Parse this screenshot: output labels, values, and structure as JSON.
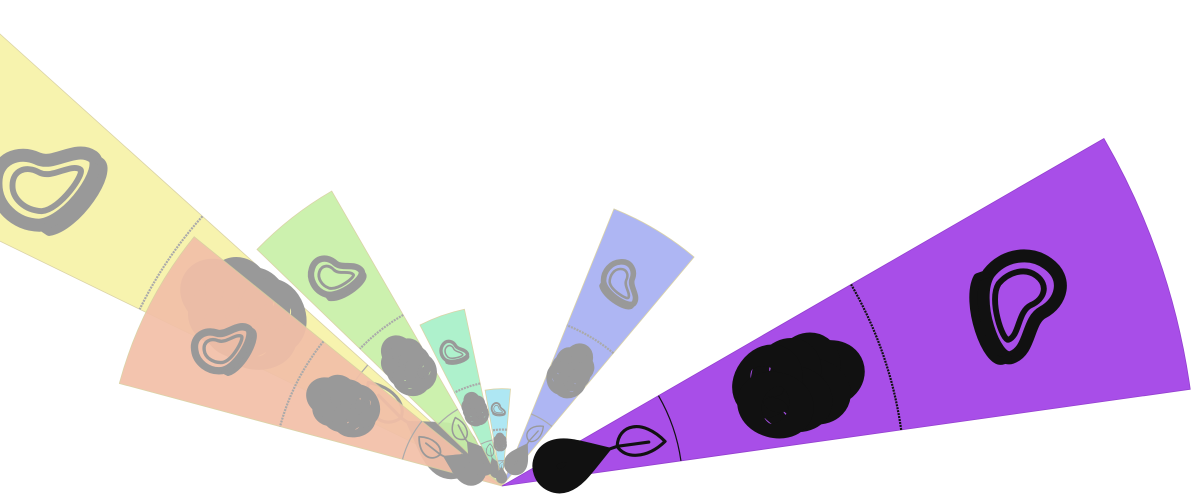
{
  "chart_data": {
    "type": "radial-fan",
    "layers": [
      "droplet-icon",
      "leaf-icon",
      "wheat-icon",
      "meat-icon"
    ],
    "sectors": [
      {
        "id": "red",
        "color": "#f2c0a8",
        "reach": 0.57,
        "highlighted": false
      },
      {
        "id": "yellow",
        "color": "#f7f3a8",
        "reach": 1.0,
        "highlighted": false
      },
      {
        "id": "green",
        "color": "#c8f0a8",
        "reach": 0.49,
        "highlighted": false
      },
      {
        "id": "teal",
        "color": "#a8f0c8",
        "reach": 0.26,
        "highlighted": false
      },
      {
        "id": "cyan",
        "color": "#a8e6f2",
        "reach": 0.14,
        "highlighted": false
      },
      {
        "id": "blue",
        "color": "#a8b0f2",
        "reach": 0.43,
        "highlighted": false
      },
      {
        "id": "purple",
        "color": "#a84ee8",
        "reach": 1.0,
        "highlighted": true
      }
    ],
    "muted_icon_color": "#999999",
    "muted_line_color": "#aaaaaa",
    "highlight_icon_color": "#111111"
  }
}
